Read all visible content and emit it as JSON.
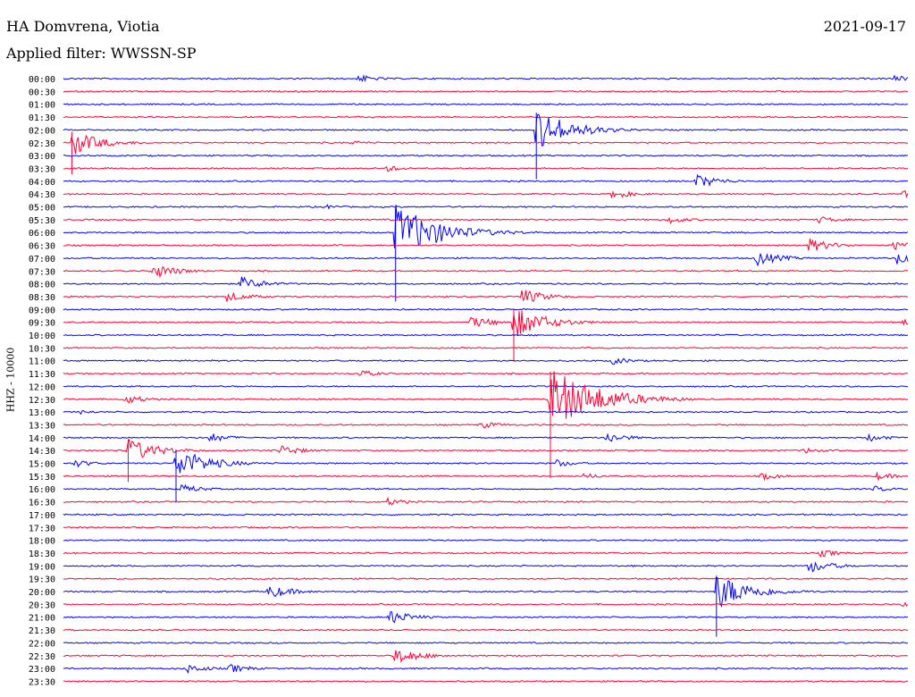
{
  "header": {
    "station": "HA Domvrena, Viotia",
    "date": "2021-09-17",
    "filter": "Applied filter: WWSSN-SP"
  },
  "colors": {
    "blue": "#0000ff",
    "red": "#ff0033",
    "text": "#000000"
  },
  "chart_data": {
    "type": "helicorder",
    "ylabel": "HHZ - 10000",
    "rows": [
      "00:00",
      "00:30",
      "01:00",
      "01:30",
      "02:00",
      "02:30",
      "03:00",
      "03:30",
      "04:00",
      "04:30",
      "05:00",
      "05:30",
      "06:00",
      "06:30",
      "07:00",
      "07:30",
      "08:00",
      "08:30",
      "09:00",
      "09:30",
      "10:00",
      "10:30",
      "11:00",
      "11:30",
      "12:00",
      "12:30",
      "13:00",
      "13:30",
      "14:00",
      "14:30",
      "15:00",
      "15:30",
      "16:00",
      "16:30",
      "17:00",
      "17:30",
      "18:00",
      "18:30",
      "19:00",
      "19:30",
      "20:00",
      "20:30",
      "21:00",
      "21:30",
      "22:00",
      "22:30",
      "23:00",
      "23:30"
    ],
    "row_colors": [
      "blue",
      "red"
    ],
    "minutes_per_row": 30,
    "events": [
      {
        "row": 0,
        "minute": 10.5,
        "amp": 0.5
      },
      {
        "row": 0,
        "minute": 29.5,
        "amp": 0.4
      },
      {
        "row": 4,
        "minute": 16.8,
        "amp": 2.5
      },
      {
        "row": 5,
        "minute": 0.3,
        "amp": 1.6
      },
      {
        "row": 5,
        "minute": 10.3,
        "amp": 0.3
      },
      {
        "row": 7,
        "minute": 11.5,
        "amp": 0.4
      },
      {
        "row": 8,
        "minute": 22.5,
        "amp": 0.9
      },
      {
        "row": 9,
        "minute": 19.5,
        "amp": 0.6
      },
      {
        "row": 9,
        "minute": 29.8,
        "amp": 0.5
      },
      {
        "row": 10,
        "minute": 9.3,
        "amp": 0.3
      },
      {
        "row": 11,
        "minute": 21.5,
        "amp": 0.5
      },
      {
        "row": 11,
        "minute": 26.8,
        "amp": 0.5
      },
      {
        "row": 12,
        "minute": 11.8,
        "amp": 3.5
      },
      {
        "row": 13,
        "minute": 26.5,
        "amp": 0.9
      },
      {
        "row": 13,
        "minute": 29.5,
        "amp": 0.6
      },
      {
        "row": 14,
        "minute": 24.6,
        "amp": 1.0
      },
      {
        "row": 14,
        "minute": 29.6,
        "amp": 0.8
      },
      {
        "row": 15,
        "minute": 3.2,
        "amp": 1.0
      },
      {
        "row": 16,
        "minute": 6.3,
        "amp": 0.9
      },
      {
        "row": 17,
        "minute": 5.8,
        "amp": 0.7
      },
      {
        "row": 17,
        "minute": 16.3,
        "amp": 1.0
      },
      {
        "row": 19,
        "minute": 14.5,
        "amp": 0.8
      },
      {
        "row": 19,
        "minute": 16.0,
        "amp": 2.0
      },
      {
        "row": 19,
        "minute": 29.8,
        "amp": 0.4
      },
      {
        "row": 23,
        "minute": 10.5,
        "amp": 0.5
      },
      {
        "row": 22,
        "minute": 19.5,
        "amp": 0.5
      },
      {
        "row": 25,
        "minute": 2.2,
        "amp": 0.6
      },
      {
        "row": 25,
        "minute": 17.3,
        "amp": 4.0
      },
      {
        "row": 26,
        "minute": 0.6,
        "amp": 0.3
      },
      {
        "row": 27,
        "minute": 14.8,
        "amp": 0.5
      },
      {
        "row": 28,
        "minute": 5.2,
        "amp": 0.6
      },
      {
        "row": 28,
        "minute": 19.3,
        "amp": 0.7
      },
      {
        "row": 28,
        "minute": 28.6,
        "amp": 0.5
      },
      {
        "row": 29,
        "minute": 2.3,
        "amp": 1.6
      },
      {
        "row": 29,
        "minute": 7.7,
        "amp": 0.7
      },
      {
        "row": 29,
        "minute": 26.3,
        "amp": 0.4
      },
      {
        "row": 30,
        "minute": 0.4,
        "amp": 0.5
      },
      {
        "row": 30,
        "minute": 4.0,
        "amp": 2.0
      },
      {
        "row": 30,
        "minute": 17.5,
        "amp": 0.5
      },
      {
        "row": 31,
        "minute": 18.5,
        "amp": 0.4
      },
      {
        "row": 31,
        "minute": 24.8,
        "amp": 0.5
      },
      {
        "row": 31,
        "minute": 28.9,
        "amp": 0.5
      },
      {
        "row": 32,
        "minute": 4.2,
        "amp": 0.6
      },
      {
        "row": 32,
        "minute": 28.8,
        "amp": 0.4
      },
      {
        "row": 33,
        "minute": 11.5,
        "amp": 0.5
      },
      {
        "row": 37,
        "minute": 26.9,
        "amp": 0.5
      },
      {
        "row": 38,
        "minute": 26.5,
        "amp": 0.9
      },
      {
        "row": 40,
        "minute": 7.3,
        "amp": 0.9
      },
      {
        "row": 40,
        "minute": 23.2,
        "amp": 2.3
      },
      {
        "row": 41,
        "minute": 29.8,
        "amp": 0.4
      },
      {
        "row": 42,
        "minute": 11.6,
        "amp": 0.9
      },
      {
        "row": 45,
        "minute": 11.8,
        "amp": 1.1
      },
      {
        "row": 46,
        "minute": 4.4,
        "amp": 0.6
      },
      {
        "row": 46,
        "minute": 5.9,
        "amp": 0.6
      }
    ]
  }
}
